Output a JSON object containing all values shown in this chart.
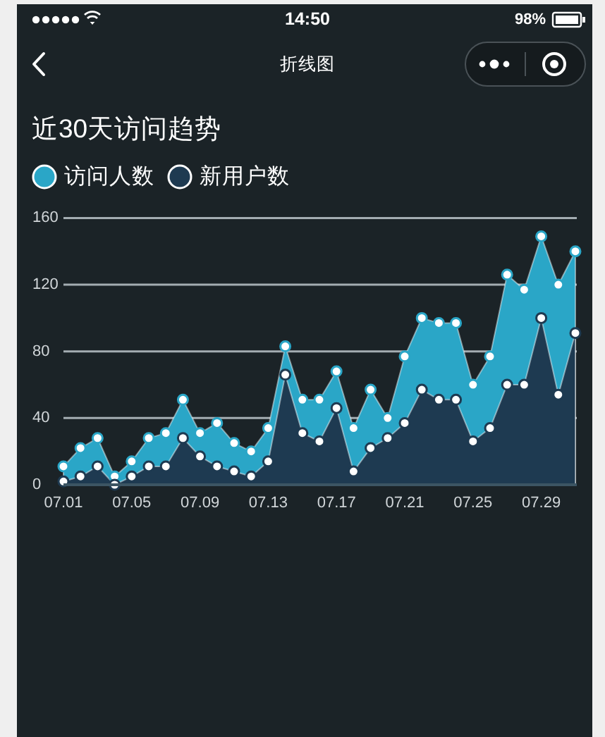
{
  "chart_data": {
    "type": "area",
    "title": "近30天访问趋势",
    "annotations": [
      "折线图",
      "14:50",
      "98%"
    ],
    "categories": [
      "07.01",
      null,
      null,
      null,
      "07.05",
      null,
      null,
      null,
      "07.09",
      null,
      null,
      null,
      "07.13",
      null,
      null,
      null,
      "07.17",
      null,
      null,
      null,
      "07.21",
      null,
      null,
      null,
      "07.25",
      null,
      null,
      null,
      "07.29",
      null,
      null
    ],
    "series": [
      {
        "name": "访问人数",
        "color": "#2aa6c7",
        "values": [
          11,
          22,
          28,
          5,
          14,
          28,
          31,
          51,
          31,
          37,
          25,
          20,
          34,
          83,
          51,
          51,
          68,
          34,
          57,
          40,
          77,
          100,
          97,
          97,
          60,
          77,
          126,
          117,
          149,
          120,
          140
        ]
      },
      {
        "name": "新用户数",
        "color": "#1e3a51",
        "values": [
          2,
          5,
          11,
          0,
          5,
          11,
          11,
          28,
          17,
          11,
          8,
          5,
          14,
          66,
          31,
          26,
          46,
          8,
          22,
          28,
          37,
          57,
          51,
          51,
          26,
          34,
          60,
          60,
          100,
          54,
          91
        ]
      }
    ],
    "ylim": [
      0,
      160
    ],
    "yticks": [
      0,
      40,
      80,
      120,
      160
    ],
    "grid": "y",
    "legend": "top left",
    "marker": "circle"
  }
}
